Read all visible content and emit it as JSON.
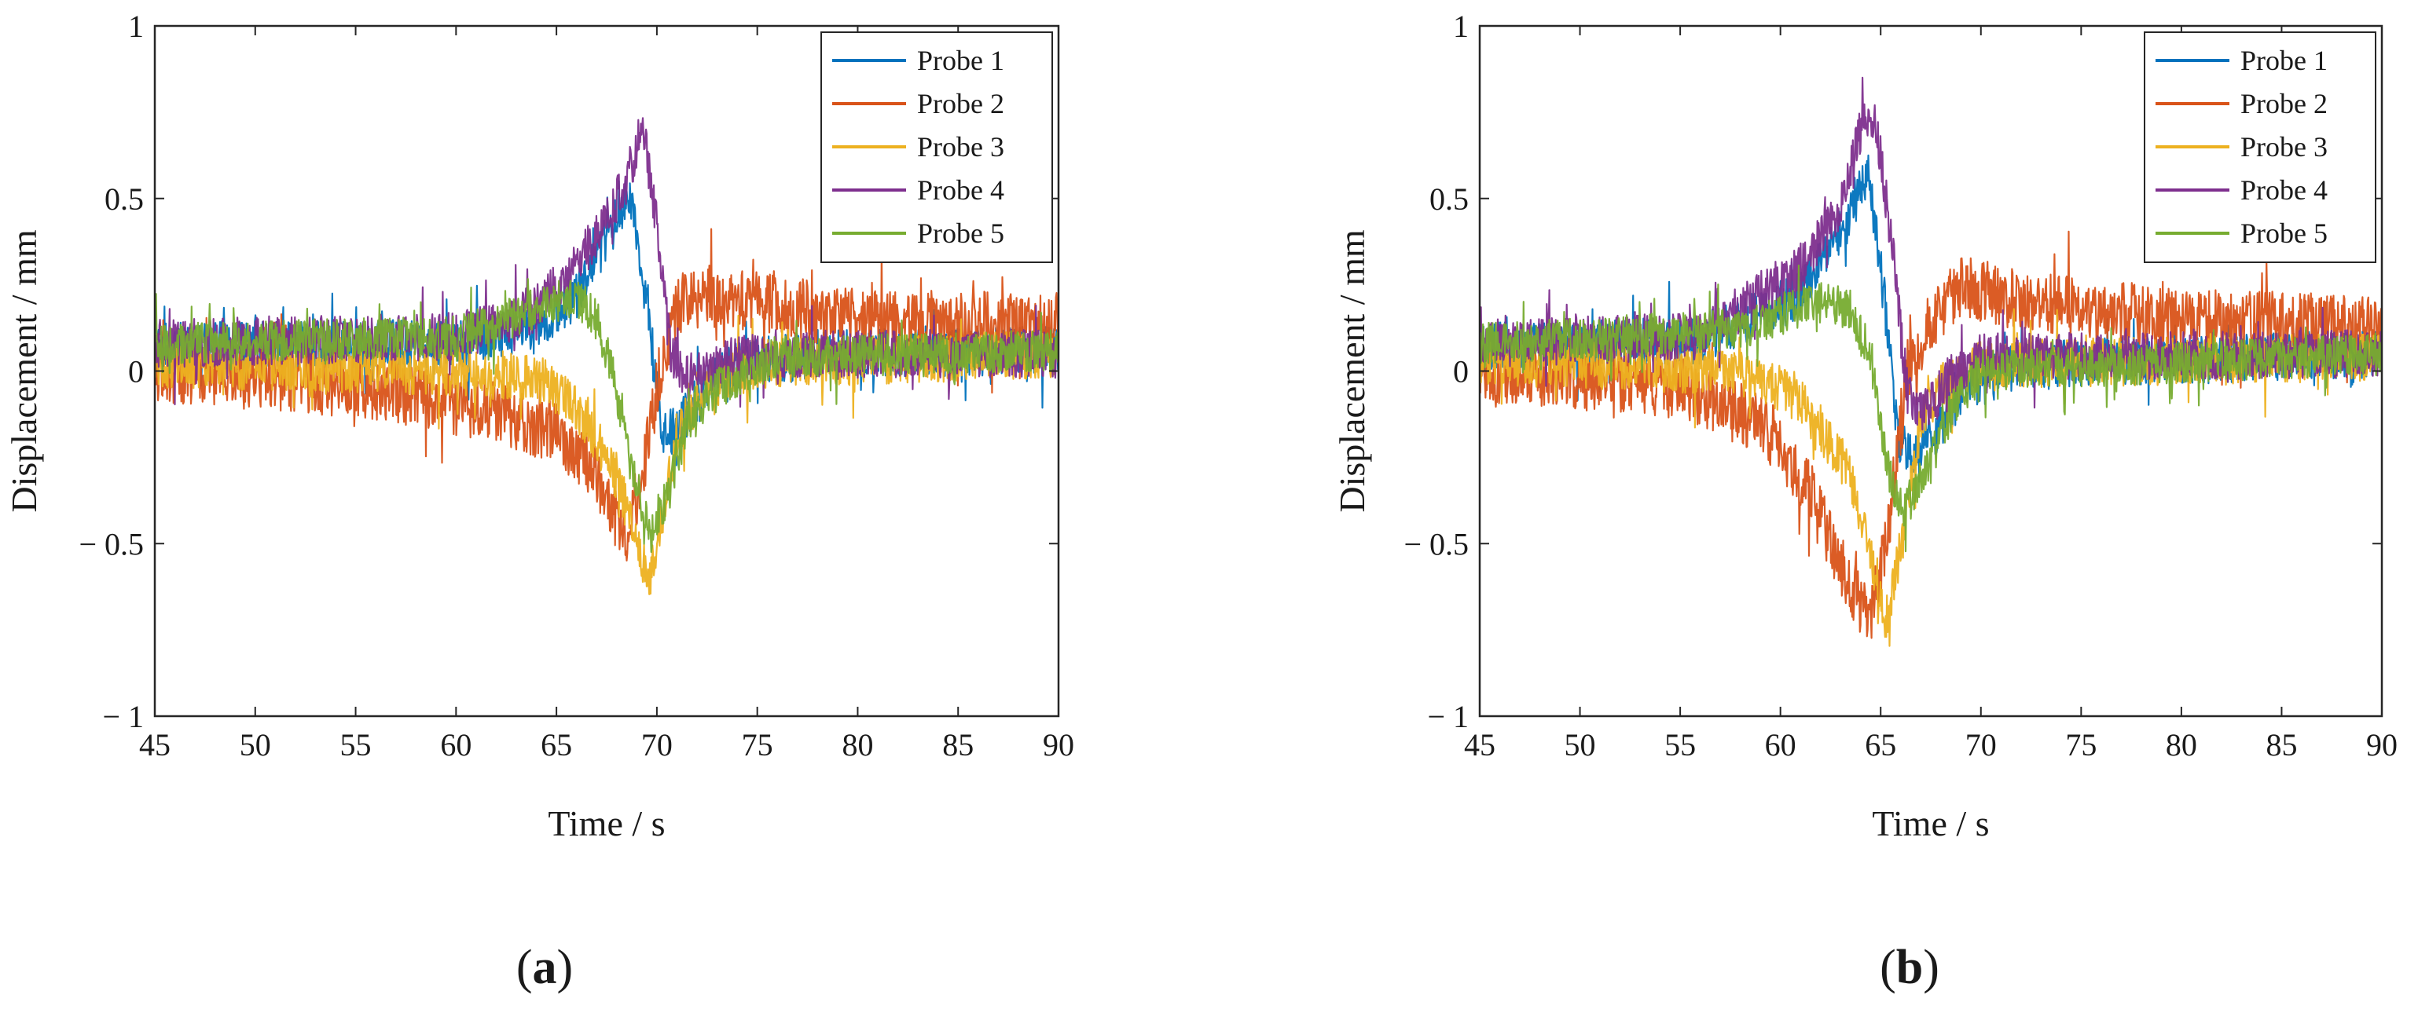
{
  "chart_data": [
    {
      "type": "line",
      "panel_label": "a",
      "xlabel": "Time / s",
      "ylabel": "Displacement / mm",
      "xlim": [
        45,
        90
      ],
      "ylim": [
        -1,
        1
      ],
      "xticks": [
        45,
        50,
        55,
        60,
        65,
        70,
        75,
        80,
        85,
        90
      ],
      "yticks": [
        -1,
        -0.5,
        0,
        0.5,
        1
      ],
      "ytick_labels": [
        "− 1",
        "− 0.5",
        "0",
        "0.5",
        "1"
      ],
      "legend_position": "top-right",
      "series": [
        {
          "name": "Probe 1",
          "color": "#0072BD",
          "noise": 0.07,
          "x": [
            45,
            60,
            64,
            66,
            67.5,
            68.6,
            69.4,
            70.2,
            71.2,
            72.5,
            74,
            78,
            90
          ],
          "y": [
            0.07,
            0.08,
            0.12,
            0.22,
            0.38,
            0.5,
            0.28,
            -0.18,
            -0.15,
            -0.05,
            0.02,
            0.05,
            0.06
          ]
        },
        {
          "name": "Probe 2",
          "color": "#D95319",
          "noise": 0.09,
          "x": [
            45,
            56,
            62,
            65,
            67,
            68.4,
            69.3,
            70.3,
            71.2,
            72.5,
            75,
            80,
            90
          ],
          "y": [
            0.0,
            -0.05,
            -0.12,
            -0.18,
            -0.3,
            -0.5,
            -0.3,
            0.05,
            0.2,
            0.22,
            0.2,
            0.15,
            0.14
          ]
        },
        {
          "name": "Probe 3",
          "color": "#EDB120",
          "noise": 0.07,
          "x": [
            45,
            60,
            64,
            66,
            67.5,
            68.8,
            69.6,
            70.3,
            71,
            72.5,
            75,
            90
          ],
          "y": [
            0.02,
            0.0,
            -0.02,
            -0.1,
            -0.25,
            -0.45,
            -0.6,
            -0.4,
            -0.18,
            -0.05,
            0.02,
            0.05
          ]
        },
        {
          "name": "Probe 4",
          "color": "#7E2F8E",
          "noise": 0.07,
          "x": [
            45,
            60,
            64,
            66,
            67.5,
            68.5,
            69.3,
            70,
            70.7,
            71.5,
            73,
            76,
            90
          ],
          "y": [
            0.08,
            0.1,
            0.18,
            0.3,
            0.45,
            0.55,
            0.72,
            0.42,
            0.05,
            -0.02,
            0.02,
            0.05,
            0.05
          ]
        },
        {
          "name": "Probe 5",
          "color": "#77AC30",
          "noise": 0.06,
          "x": [
            45,
            60,
            64,
            66,
            67,
            67.8,
            68.8,
            69.8,
            70.6,
            71.5,
            73,
            76,
            90
          ],
          "y": [
            0.08,
            0.1,
            0.18,
            0.22,
            0.15,
            0.0,
            -0.3,
            -0.48,
            -0.35,
            -0.15,
            -0.05,
            0.04,
            0.06
          ]
        }
      ]
    },
    {
      "type": "line",
      "panel_label": "b",
      "xlabel": "Time / s",
      "ylabel": "Displacement / mm",
      "xlim": [
        45,
        90
      ],
      "ylim": [
        -1,
        1
      ],
      "xticks": [
        45,
        50,
        55,
        60,
        65,
        70,
        75,
        80,
        85,
        90
      ],
      "yticks": [
        -1,
        -0.5,
        0,
        0.5,
        1
      ],
      "ytick_labels": [
        "− 1",
        "− 0.5",
        "0",
        "0.5",
        "1"
      ],
      "legend_position": "top-right",
      "series": [
        {
          "name": "Probe 1",
          "color": "#0072BD",
          "noise": 0.07,
          "x": [
            45,
            56,
            61,
            63,
            64.4,
            65.2,
            65.9,
            66.8,
            68,
            69.5,
            72,
            90
          ],
          "y": [
            0.07,
            0.09,
            0.22,
            0.4,
            0.58,
            0.2,
            -0.2,
            -0.25,
            -0.15,
            -0.05,
            0.02,
            0.05
          ]
        },
        {
          "name": "Probe 2",
          "color": "#D95319",
          "noise": 0.09,
          "x": [
            45,
            55,
            59,
            61.5,
            63.3,
            64.4,
            65.3,
            66.3,
            67.5,
            69,
            72,
            80,
            90
          ],
          "y": [
            0.0,
            -0.05,
            -0.15,
            -0.35,
            -0.6,
            -0.72,
            -0.5,
            0.0,
            0.15,
            0.25,
            0.2,
            0.15,
            0.13
          ]
        },
        {
          "name": "Probe 3",
          "color": "#EDB120",
          "noise": 0.07,
          "x": [
            45,
            58,
            61,
            63.5,
            64.6,
            65.3,
            66.2,
            67,
            68,
            70,
            90
          ],
          "y": [
            0.03,
            0.0,
            -0.08,
            -0.3,
            -0.55,
            -0.72,
            -0.45,
            -0.15,
            -0.05,
            0.02,
            0.04
          ]
        },
        {
          "name": "Probe 4",
          "color": "#7E2F8E",
          "noise": 0.07,
          "x": [
            45,
            56,
            61,
            63,
            64,
            64.7,
            65.5,
            66.3,
            67.2,
            68.5,
            70,
            90
          ],
          "y": [
            0.08,
            0.1,
            0.3,
            0.48,
            0.7,
            0.75,
            0.4,
            -0.05,
            -0.12,
            -0.02,
            0.04,
            0.05
          ]
        },
        {
          "name": "Probe 5",
          "color": "#77AC30",
          "noise": 0.06,
          "x": [
            45,
            58,
            62,
            63.5,
            64.5,
            65.4,
            66.2,
            67.2,
            68.5,
            70,
            90
          ],
          "y": [
            0.08,
            0.12,
            0.2,
            0.18,
            0.05,
            -0.3,
            -0.4,
            -0.3,
            -0.12,
            0.0,
            0.05
          ]
        }
      ]
    }
  ]
}
